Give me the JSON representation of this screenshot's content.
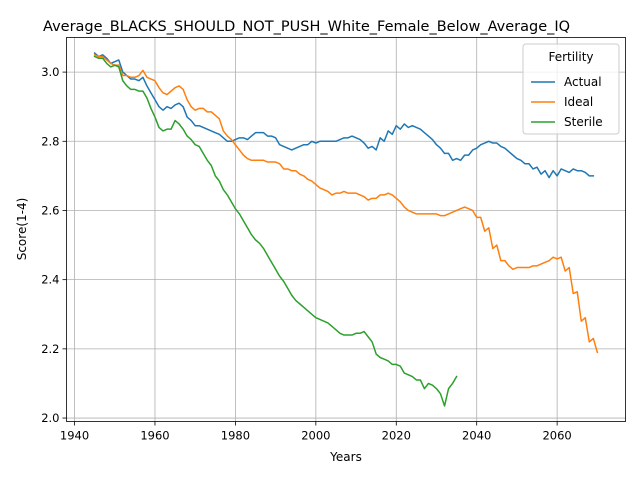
{
  "chart_data": {
    "type": "line",
    "title": "Average_BLACKS_SHOULD_NOT_PUSH_White_Female_Below_Average_IQ",
    "xlabel": "Years",
    "ylabel": "Score(1-4)",
    "xlim": [
      1938,
      2077
    ],
    "ylim": [
      1.99,
      3.1
    ],
    "xticks": [
      1940,
      1960,
      1980,
      2000,
      2020,
      2040,
      2060
    ],
    "yticks": [
      2.0,
      2.2,
      2.4,
      2.6,
      2.8,
      3.0
    ],
    "xtick_labels": [
      "1940",
      "1960",
      "1980",
      "2000",
      "2020",
      "2040",
      "2060"
    ],
    "ytick_labels": [
      "2.0",
      "2.2",
      "2.4",
      "2.6",
      "2.8",
      "3.0"
    ],
    "grid": true,
    "legend": {
      "title": "Fertility",
      "placement": "top-right"
    },
    "series": [
      {
        "name": "Actual",
        "color": "#1f77b4",
        "x_start": 1945,
        "values": [
          3.055,
          3.045,
          3.05,
          3.04,
          3.025,
          3.03,
          3.035,
          3.0,
          2.99,
          2.98,
          2.98,
          2.975,
          2.985,
          2.96,
          2.94,
          2.92,
          2.9,
          2.89,
          2.9,
          2.895,
          2.905,
          2.91,
          2.9,
          2.87,
          2.86,
          2.845,
          2.845,
          2.84,
          2.835,
          2.83,
          2.825,
          2.82,
          2.81,
          2.8,
          2.8,
          2.805,
          2.81,
          2.81,
          2.805,
          2.815,
          2.825,
          2.825,
          2.825,
          2.815,
          2.815,
          2.81,
          2.79,
          2.785,
          2.78,
          2.775,
          2.78,
          2.785,
          2.79,
          2.79,
          2.8,
          2.795,
          2.8,
          2.8,
          2.8,
          2.8,
          2.8,
          2.805,
          2.81,
          2.81,
          2.815,
          2.81,
          2.805,
          2.795,
          2.78,
          2.785,
          2.775,
          2.81,
          2.8,
          2.83,
          2.82,
          2.845,
          2.835,
          2.85,
          2.84,
          2.845,
          2.84,
          2.835,
          2.825,
          2.815,
          2.805,
          2.79,
          2.78,
          2.765,
          2.765,
          2.745,
          2.75,
          2.745,
          2.76,
          2.76,
          2.775,
          2.78,
          2.79,
          2.795,
          2.8,
          2.795,
          2.795,
          2.785,
          2.78,
          2.77,
          2.76,
          2.75,
          2.745,
          2.735,
          2.735,
          2.72,
          2.725,
          2.705,
          2.715,
          2.695,
          2.715,
          2.7,
          2.72,
          2.715,
          2.71,
          2.72,
          2.715,
          2.715,
          2.71,
          2.7,
          2.7
        ]
      },
      {
        "name": "Ideal",
        "color": "#ff7f0e",
        "x_start": 1945,
        "values": [
          3.05,
          3.045,
          3.045,
          3.035,
          3.025,
          3.02,
          3.02,
          2.99,
          2.99,
          2.985,
          2.985,
          2.99,
          3.005,
          2.985,
          2.98,
          2.975,
          2.955,
          2.94,
          2.935,
          2.945,
          2.955,
          2.96,
          2.95,
          2.92,
          2.9,
          2.89,
          2.895,
          2.895,
          2.885,
          2.885,
          2.875,
          2.865,
          2.83,
          2.815,
          2.805,
          2.79,
          2.775,
          2.76,
          2.75,
          2.745,
          2.745,
          2.745,
          2.745,
          2.74,
          2.74,
          2.74,
          2.735,
          2.72,
          2.72,
          2.715,
          2.715,
          2.705,
          2.7,
          2.69,
          2.685,
          2.675,
          2.665,
          2.66,
          2.655,
          2.645,
          2.65,
          2.65,
          2.655,
          2.65,
          2.65,
          2.65,
          2.645,
          2.64,
          2.63,
          2.635,
          2.635,
          2.645,
          2.645,
          2.65,
          2.645,
          2.635,
          2.625,
          2.61,
          2.6,
          2.595,
          2.59,
          2.59,
          2.59,
          2.59,
          2.59,
          2.59,
          2.585,
          2.585,
          2.59,
          2.595,
          2.6,
          2.605,
          2.61,
          2.605,
          2.6,
          2.58,
          2.58,
          2.54,
          2.55,
          2.49,
          2.5,
          2.455,
          2.455,
          2.44,
          2.43,
          2.435,
          2.435,
          2.435,
          2.435,
          2.44,
          2.44,
          2.445,
          2.45,
          2.455,
          2.465,
          2.46,
          2.465,
          2.425,
          2.435,
          2.36,
          2.365,
          2.28,
          2.29,
          2.22,
          2.23,
          2.19
        ]
      },
      {
        "name": "Sterile",
        "color": "#2ca02c",
        "x_start": 1945,
        "values": [
          3.045,
          3.04,
          3.04,
          3.025,
          3.015,
          3.02,
          3.015,
          2.975,
          2.96,
          2.95,
          2.95,
          2.945,
          2.945,
          2.925,
          2.895,
          2.87,
          2.84,
          2.83,
          2.835,
          2.835,
          2.86,
          2.85,
          2.835,
          2.815,
          2.805,
          2.79,
          2.785,
          2.765,
          2.745,
          2.73,
          2.7,
          2.685,
          2.66,
          2.645,
          2.625,
          2.605,
          2.59,
          2.57,
          2.55,
          2.53,
          2.515,
          2.505,
          2.49,
          2.47,
          2.45,
          2.43,
          2.41,
          2.395,
          2.375,
          2.355,
          2.34,
          2.33,
          2.32,
          2.31,
          2.3,
          2.29,
          2.285,
          2.28,
          2.275,
          2.265,
          2.255,
          2.245,
          2.24,
          2.24,
          2.24,
          2.245,
          2.245,
          2.25,
          2.235,
          2.22,
          2.185,
          2.175,
          2.17,
          2.165,
          2.155,
          2.155,
          2.15,
          2.13,
          2.125,
          2.12,
          2.11,
          2.11,
          2.085,
          2.1,
          2.095,
          2.085,
          2.07,
          2.035,
          2.085,
          2.1,
          2.12
        ]
      }
    ]
  }
}
